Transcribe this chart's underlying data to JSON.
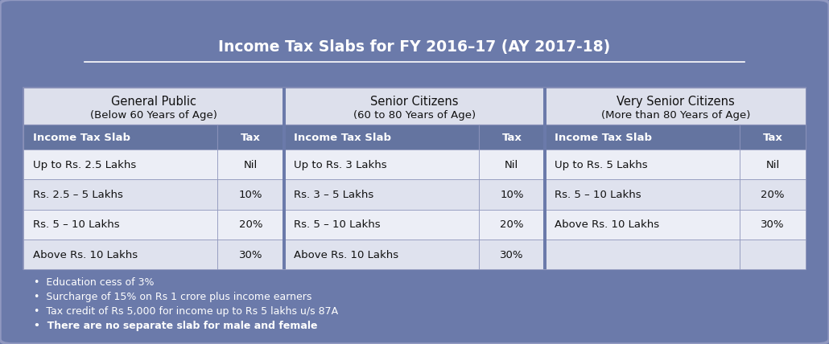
{
  "title": "Income Tax Slabs for FY 2016–17 (AY 2017-18)",
  "bg_color": "#6b7aaa",
  "sections": [
    {
      "title1": "General Public",
      "title2": "(Below 60 Years of Age)",
      "rows": [
        [
          "Up to Rs. 2.5 Lakhs",
          "Nil"
        ],
        [
          "Rs. 2.5 – 5 Lakhs",
          "10%"
        ],
        [
          "Rs. 5 – 10 Lakhs",
          "20%"
        ],
        [
          "Above Rs. 10 Lakhs",
          "30%"
        ]
      ]
    },
    {
      "title1": "Senior Citizens",
      "title2": "(60 to 80 Years of Age)",
      "rows": [
        [
          "Up to Rs. 3 Lakhs",
          "Nil"
        ],
        [
          "Rs. 3 – 5 Lakhs",
          "10%"
        ],
        [
          "Rs. 5 – 10 Lakhs",
          "20%"
        ],
        [
          "Above Rs. 10 Lakhs",
          "30%"
        ]
      ]
    },
    {
      "title1": "Very Senior Citizens",
      "title2": "(More than 80 Years of Age)",
      "rows": [
        [
          "Up to Rs. 5 Lakhs",
          "Nil"
        ],
        [
          "Rs. 5 – 10 Lakhs",
          "20%"
        ],
        [
          "Above Rs. 10 Lakhs",
          "30%"
        ],
        [
          "",
          ""
        ]
      ]
    }
  ],
  "footer_bullets": [
    "Education cess of 3%",
    "Surcharge of 15% on Rs 1 crore plus income earners",
    "Tax credit of Rs 5,000 for income up to Rs 5 lakhs u/s 87A",
    "There are no separate slab for male and female"
  ],
  "footer_bold_index": 3,
  "col_header_bg": "#6474a0",
  "section_header_bg": "#dde0ec",
  "row_colors": [
    "#eceef6",
    "#dfe2ee"
  ],
  "border_color": "#8890b8",
  "table_border_color": "#8890b8",
  "col_header_text": "white",
  "section_header_text": "#111111",
  "row_text": "#111111",
  "footer_text": "white"
}
